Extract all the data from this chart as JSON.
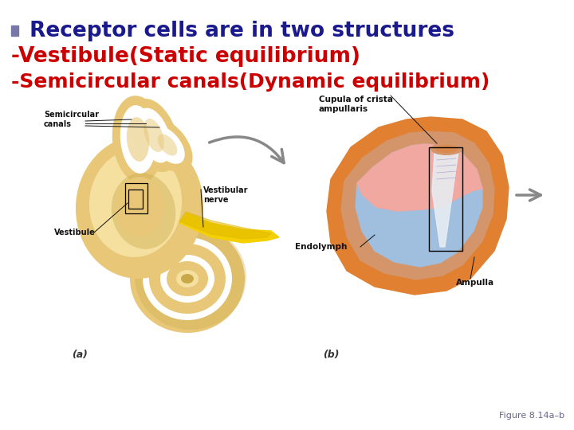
{
  "background_color": "#ffffff",
  "bullet_text": " Receptor cells are in two structures",
  "bullet_color": "#1a1a8c",
  "bullet_square_color": "#7878a8",
  "line2_text": "-Vestibule(Static equilibrium)",
  "line2_color": "#cc0000",
  "line3_text": "-Semicircular canals(Dynamic equilibrium)",
  "line3_color": "#cc0000",
  "caption_a": "(a)",
  "caption_b": "(b)",
  "caption_color": "#333333",
  "figure_label": "Figure 8.14a–b",
  "figure_label_color": "#666688",
  "bullet_fontsize": 19,
  "line2_fontsize": 19,
  "line3_fontsize": 18,
  "caption_fontsize": 9,
  "figure_fontsize": 8,
  "label_fontsize": 7,
  "label_fontsize_b": 7.5,
  "ear_fill": "#E8C878",
  "ear_shadow": "#C8A848",
  "ear_light": "#F5E0A0",
  "nerve_yellow": "#F5D000",
  "nerve_yellow2": "#E0B800",
  "arrow_gray": "#888888",
  "shell_orange": "#E08030",
  "shell_tan": "#D4956A",
  "fluid_blue": "#A0BEDD",
  "fluid_blue2": "#90B8D8",
  "pink_inner": "#F0A8A0",
  "cupula_white": "#E8EEF4",
  "label_color": "#111111",
  "line_color": "#111111"
}
